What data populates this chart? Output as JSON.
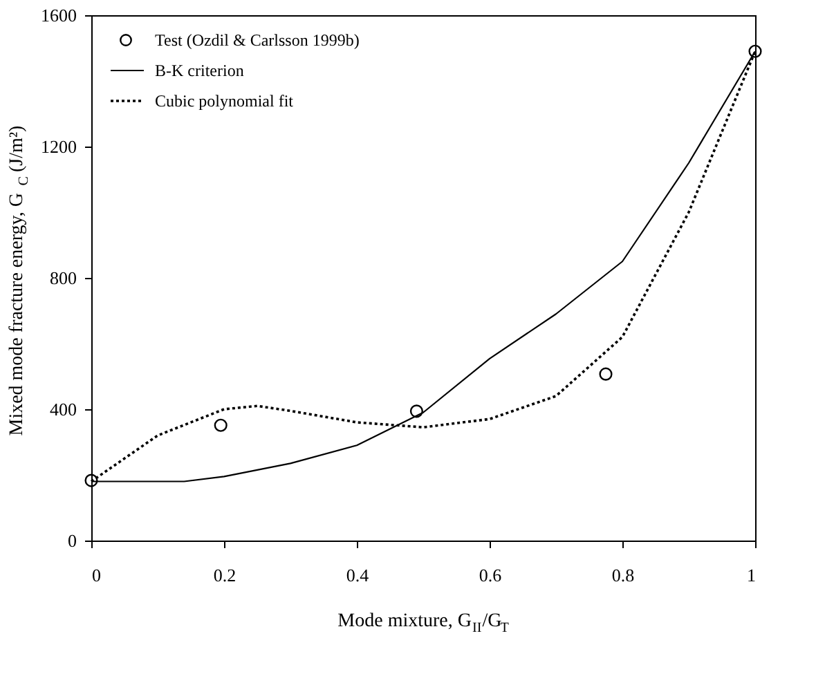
{
  "chart_data": {
    "type": "line",
    "xlabel": "Mode mixture, G$_{II}$/G$_{T}$",
    "ylabel": "Mixed mode fracture energy, G$_{C}$ (J/m²)",
    "xlim": [
      0,
      1
    ],
    "xticks": [
      0,
      0.2,
      0.4,
      0.6,
      0.8,
      1
    ],
    "ylim": [
      0,
      1600
    ],
    "yticks": [
      0,
      400,
      800,
      1200,
      1600
    ],
    "grid": false,
    "legend": "top left",
    "series": [
      {
        "name": "Test (Ozdil & Carlsson 1999b)",
        "type": "scatter",
        "marker": "circle",
        "color": "#000000",
        "x": [
          0,
          0.195,
          0.49,
          0.775,
          1
        ],
        "values": [
          183,
          351,
          394,
          507,
          1490
        ]
      },
      {
        "name": "B-K criterion",
        "type": "line",
        "line_style": "solid",
        "color": "#000000",
        "x": [
          0,
          0.14,
          0.2,
          0.3,
          0.4,
          0.5,
          0.6,
          0.7,
          0.8,
          0.9,
          1
        ],
        "values": [
          180,
          180,
          195,
          235,
          290,
          390,
          554,
          690,
          850,
          1150,
          1490
        ]
      },
      {
        "name": "Cubic polynomial fit",
        "type": "line",
        "line_style": "dotted",
        "color": "#000000",
        "x": [
          0,
          0.1,
          0.2,
          0.25,
          0.3,
          0.4,
          0.5,
          0.6,
          0.7,
          0.8,
          0.9,
          1
        ],
        "values": [
          180,
          320,
          400,
          410,
          395,
          360,
          345,
          370,
          440,
          620,
          1000,
          1490
        ]
      }
    ]
  }
}
